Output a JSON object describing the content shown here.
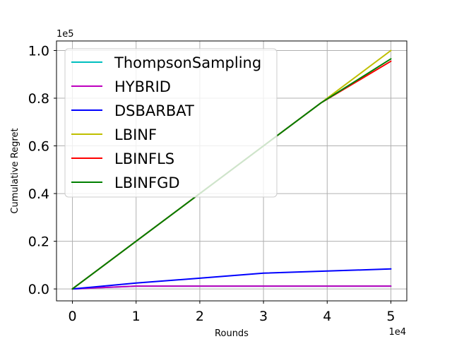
{
  "chart_data": {
    "type": "line",
    "title": "",
    "xlabel": "Rounds",
    "ylabel": "Cumulative Regret",
    "x_offset_label": "1e4",
    "y_offset_label": "1e5",
    "xlim": [
      -0.25,
      5.25
    ],
    "ylim": [
      -0.05,
      1.04
    ],
    "xticks": [
      0,
      1,
      2,
      3,
      4,
      5
    ],
    "xtick_labels": [
      "0",
      "1",
      "2",
      "3",
      "4",
      "5"
    ],
    "yticks": [
      0.0,
      0.2,
      0.4,
      0.6,
      0.8,
      1.0
    ],
    "ytick_labels": [
      "0.0",
      "0.2",
      "0.4",
      "0.6",
      "0.8",
      "1.0"
    ],
    "grid": true,
    "legend_position": "upper-left",
    "series": [
      {
        "name": "ThompsonSampling",
        "color": "#00bfbf",
        "x": [
          0,
          1,
          2,
          3,
          4,
          5
        ],
        "y": [
          0,
          0.012,
          0.012,
          0.012,
          0.012,
          0.012
        ]
      },
      {
        "name": "HYBRID",
        "color": "#bf00bf",
        "x": [
          0,
          1,
          2,
          3,
          4,
          5
        ],
        "y": [
          0,
          0.012,
          0.012,
          0.012,
          0.012,
          0.012
        ]
      },
      {
        "name": "DSBARBAT",
        "color": "#0000ff",
        "x": [
          0,
          1,
          2,
          3,
          4,
          5
        ],
        "y": [
          0,
          0.025,
          0.045,
          0.066,
          0.075,
          0.084
        ]
      },
      {
        "name": "LBINF",
        "color": "#bfbf00",
        "x": [
          0,
          1,
          2,
          3,
          3.9,
          5
        ],
        "y": [
          0,
          0.2,
          0.4,
          0.6,
          0.78,
          1.0
        ]
      },
      {
        "name": "LBINFLS",
        "color": "#ff0000",
        "x": [
          0,
          1,
          2,
          3,
          3.9,
          5
        ],
        "y": [
          0,
          0.2,
          0.4,
          0.6,
          0.78,
          0.955
        ]
      },
      {
        "name": "LBINFGD",
        "color": "#008000",
        "x": [
          0,
          1,
          2,
          3,
          3.9,
          5
        ],
        "y": [
          0,
          0.2,
          0.4,
          0.6,
          0.78,
          0.965
        ]
      }
    ]
  }
}
